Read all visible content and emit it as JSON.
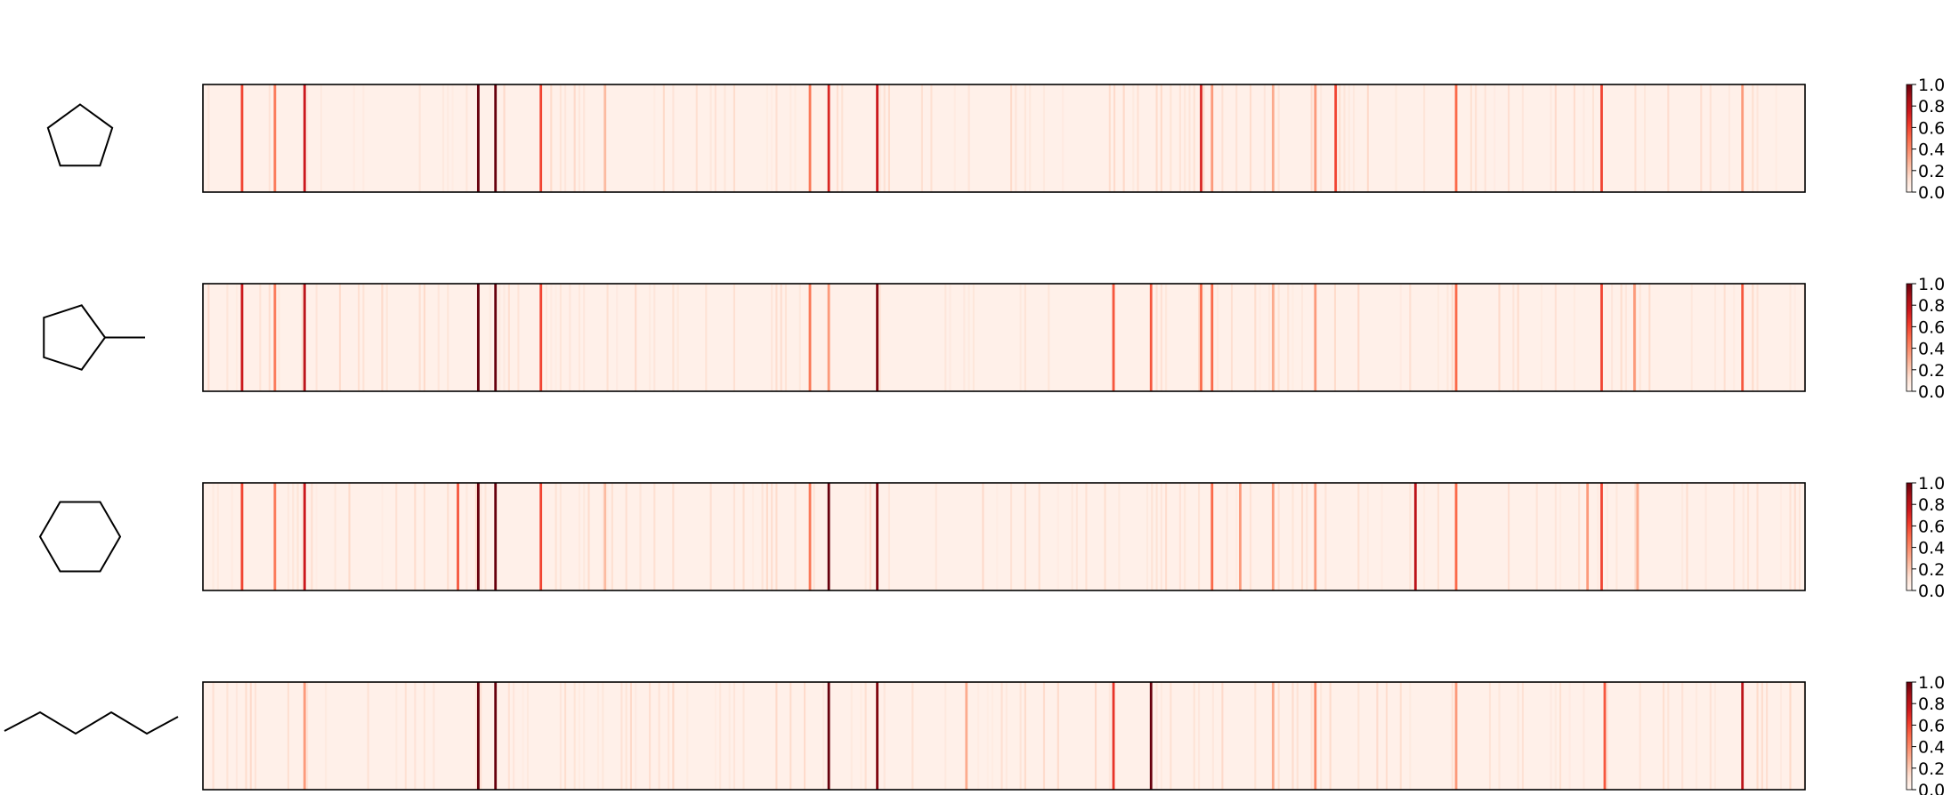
{
  "chart_data": {
    "type": "heatmap",
    "colormap": "Reds",
    "colorbar_ticks": [
      "0.0",
      "0.2",
      "0.4",
      "0.6",
      "0.8",
      "1.0"
    ],
    "colorbar_range": [
      0,
      1
    ],
    "column_range": [
      0,
      1024
    ],
    "background_value": 0.03,
    "panels": [
      {
        "molecule": "cyclopentane",
        "structure_icon": "pentagon-ring",
        "highlights": [
          {
            "col": 25,
            "value": 0.6
          },
          {
            "col": 46,
            "value": 0.45
          },
          {
            "col": 65,
            "value": 0.75
          },
          {
            "col": 176,
            "value": 1.0
          },
          {
            "col": 187,
            "value": 1.0
          },
          {
            "col": 216,
            "value": 0.6
          },
          {
            "col": 257,
            "value": 0.25
          },
          {
            "col": 388,
            "value": 0.45
          },
          {
            "col": 400,
            "value": 0.7
          },
          {
            "col": 431,
            "value": 0.75
          },
          {
            "col": 638,
            "value": 0.7
          },
          {
            "col": 645,
            "value": 0.35
          },
          {
            "col": 684,
            "value": 0.3
          },
          {
            "col": 711,
            "value": 0.35
          },
          {
            "col": 724,
            "value": 0.6
          },
          {
            "col": 801,
            "value": 0.5
          },
          {
            "col": 894,
            "value": 0.6
          },
          {
            "col": 984,
            "value": 0.35
          }
        ]
      },
      {
        "molecule": "methylcyclopentane",
        "structure_icon": "pentagon-ring-methyl",
        "highlights": [
          {
            "col": 25,
            "value": 0.75
          },
          {
            "col": 46,
            "value": 0.45
          },
          {
            "col": 65,
            "value": 0.8
          },
          {
            "col": 176,
            "value": 1.0
          },
          {
            "col": 187,
            "value": 1.0
          },
          {
            "col": 216,
            "value": 0.6
          },
          {
            "col": 388,
            "value": 0.45
          },
          {
            "col": 400,
            "value": 0.35
          },
          {
            "col": 431,
            "value": 0.95
          },
          {
            "col": 582,
            "value": 0.55
          },
          {
            "col": 606,
            "value": 0.55
          },
          {
            "col": 638,
            "value": 0.5
          },
          {
            "col": 645,
            "value": 0.5
          },
          {
            "col": 684,
            "value": 0.3
          },
          {
            "col": 711,
            "value": 0.35
          },
          {
            "col": 801,
            "value": 0.5
          },
          {
            "col": 894,
            "value": 0.6
          },
          {
            "col": 915,
            "value": 0.35
          },
          {
            "col": 984,
            "value": 0.55
          }
        ]
      },
      {
        "molecule": "cyclohexane",
        "structure_icon": "hexagon-ring",
        "highlights": [
          {
            "col": 25,
            "value": 0.6
          },
          {
            "col": 46,
            "value": 0.45
          },
          {
            "col": 65,
            "value": 0.75
          },
          {
            "col": 163,
            "value": 0.55
          },
          {
            "col": 176,
            "value": 1.0
          },
          {
            "col": 187,
            "value": 1.0
          },
          {
            "col": 216,
            "value": 0.6
          },
          {
            "col": 257,
            "value": 0.25
          },
          {
            "col": 388,
            "value": 0.45
          },
          {
            "col": 400,
            "value": 1.0
          },
          {
            "col": 431,
            "value": 0.95
          },
          {
            "col": 645,
            "value": 0.5
          },
          {
            "col": 663,
            "value": 0.35
          },
          {
            "col": 684,
            "value": 0.35
          },
          {
            "col": 711,
            "value": 0.35
          },
          {
            "col": 775,
            "value": 0.8
          },
          {
            "col": 801,
            "value": 0.5
          },
          {
            "col": 885,
            "value": 0.35
          },
          {
            "col": 894,
            "value": 0.6
          },
          {
            "col": 917,
            "value": 0.3
          }
        ]
      },
      {
        "molecule": "hexane",
        "structure_icon": "zigzag-chain",
        "highlights": [
          {
            "col": 65,
            "value": 0.35
          },
          {
            "col": 176,
            "value": 1.0
          },
          {
            "col": 187,
            "value": 1.0
          },
          {
            "col": 400,
            "value": 1.0
          },
          {
            "col": 431,
            "value": 0.95
          },
          {
            "col": 488,
            "value": 0.3
          },
          {
            "col": 582,
            "value": 0.65
          },
          {
            "col": 606,
            "value": 1.0
          },
          {
            "col": 684,
            "value": 0.3
          },
          {
            "col": 711,
            "value": 0.4
          },
          {
            "col": 801,
            "value": 0.35
          },
          {
            "col": 896,
            "value": 0.55
          },
          {
            "col": 984,
            "value": 0.8
          }
        ]
      }
    ]
  }
}
